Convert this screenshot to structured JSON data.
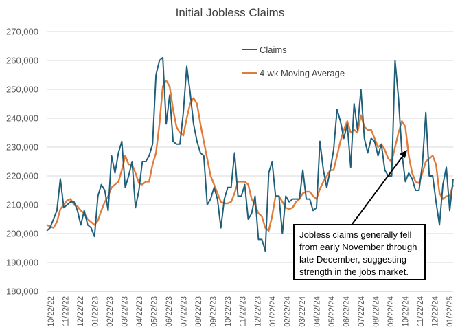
{
  "chart_data": {
    "type": "line",
    "title": "Initial Jobless Claims",
    "xlabel": "",
    "ylabel": "",
    "ylim": [
      180000,
      270000
    ],
    "y_ticks": [
      "270,000",
      "260,000",
      "250,000",
      "240,000",
      "230,000",
      "220,000",
      "210,000",
      "200,000",
      "190,000",
      "180,000"
    ],
    "x_tick_labels": [
      "10/22/22",
      "11/22/22",
      "12/22/22",
      "01/22/23",
      "02/22/23",
      "03/22/23",
      "04/22/23",
      "05/22/23",
      "06/22/23",
      "07/22/23",
      "08/22/23",
      "09/22/23",
      "10/22/23",
      "11/22/23",
      "12/22/23",
      "01/22/24",
      "02/22/24",
      "03/22/24",
      "04/22/24",
      "05/22/24",
      "06/22/24",
      "07/22/24",
      "08/22/24",
      "09/22/24",
      "10/22/24",
      "11/22/24",
      "12/22/24",
      "01/22/25"
    ],
    "legend_position": "top-right",
    "series": [
      {
        "name": "Claims",
        "color": "#1f5f7a",
        "values": [
          201000,
          202000,
          205000,
          208000,
          219000,
          209000,
          210000,
          211000,
          211000,
          208000,
          203000,
          208000,
          203000,
          202000,
          199000,
          213000,
          217000,
          215000,
          208000,
          227000,
          221000,
          228000,
          232000,
          216000,
          220000,
          225000,
          209000,
          215000,
          225000,
          225000,
          227000,
          231000,
          255000,
          260000,
          261000,
          238000,
          248000,
          232000,
          231000,
          231000,
          242000,
          258000,
          249000,
          238000,
          232000,
          228000,
          227000,
          210000,
          212000,
          216000,
          212000,
          202000,
          212000,
          216000,
          216000,
          228000,
          213000,
          213000,
          217000,
          205000,
          207000,
          213000,
          198000,
          198000,
          194000,
          221000,
          225000,
          213000,
          213000,
          200000,
          213000,
          211000,
          212000,
          212000,
          212000,
          222000,
          212000,
          212000,
          208000,
          209000,
          232000,
          222000,
          216000,
          222000,
          229000,
          243000,
          239000,
          233000,
          238000,
          223000,
          245000,
          236000,
          250000,
          233000,
          228000,
          233000,
          232000,
          227000,
          231000,
          222000,
          220000,
          220000,
          260000,
          247000,
          228000,
          218000,
          221000,
          219000,
          215000,
          215000,
          224000,
          242000,
          220000,
          220000,
          211000,
          203000,
          217000,
          223000,
          208000,
          219000
        ]
      },
      {
        "name": "4-wk Moving Average",
        "color": "#e07b39",
        "values": [
          203000,
          202500,
          202000,
          204000,
          208500,
          210000,
          211500,
          212000,
          210000,
          209500,
          208000,
          207000,
          205000,
          204000,
          203000,
          204500,
          208000,
          211000,
          213000,
          216000,
          217000,
          218000,
          222000,
          227000,
          224000,
          224000,
          221000,
          217500,
          217000,
          218000,
          218000,
          224000,
          228000,
          238000,
          251000,
          253000,
          251000,
          243000,
          237000,
          235000,
          234000,
          240000,
          245000,
          247000,
          245000,
          238000,
          232000,
          226000,
          220000,
          217000,
          214000,
          211000,
          210500,
          210500,
          211000,
          214000,
          218000,
          218000,
          218000,
          217000,
          212000,
          210000,
          207000,
          206000,
          202000,
          201000,
          206000,
          213000,
          213000,
          211000,
          209000,
          208500,
          209000,
          211000,
          212000,
          214000,
          214500,
          214500,
          213000,
          212000,
          215500,
          218000,
          220000,
          222000,
          222000,
          227000,
          232000,
          236000,
          239000,
          235000,
          236000,
          235000,
          241000,
          237000,
          236000,
          236000,
          233000,
          230000,
          231000,
          229000,
          226000,
          225000,
          230000,
          235000,
          239000,
          237000,
          227000,
          221000,
          218000,
          217500,
          221000,
          225000,
          226000,
          227000,
          224000,
          214000,
          212000,
          213000,
          213000,
          217000
        ]
      }
    ]
  },
  "callout": {
    "lines": [
      "Jobless claims generally fell",
      "from early November through",
      "late December, suggesting",
      "strength in the jobs market."
    ]
  }
}
